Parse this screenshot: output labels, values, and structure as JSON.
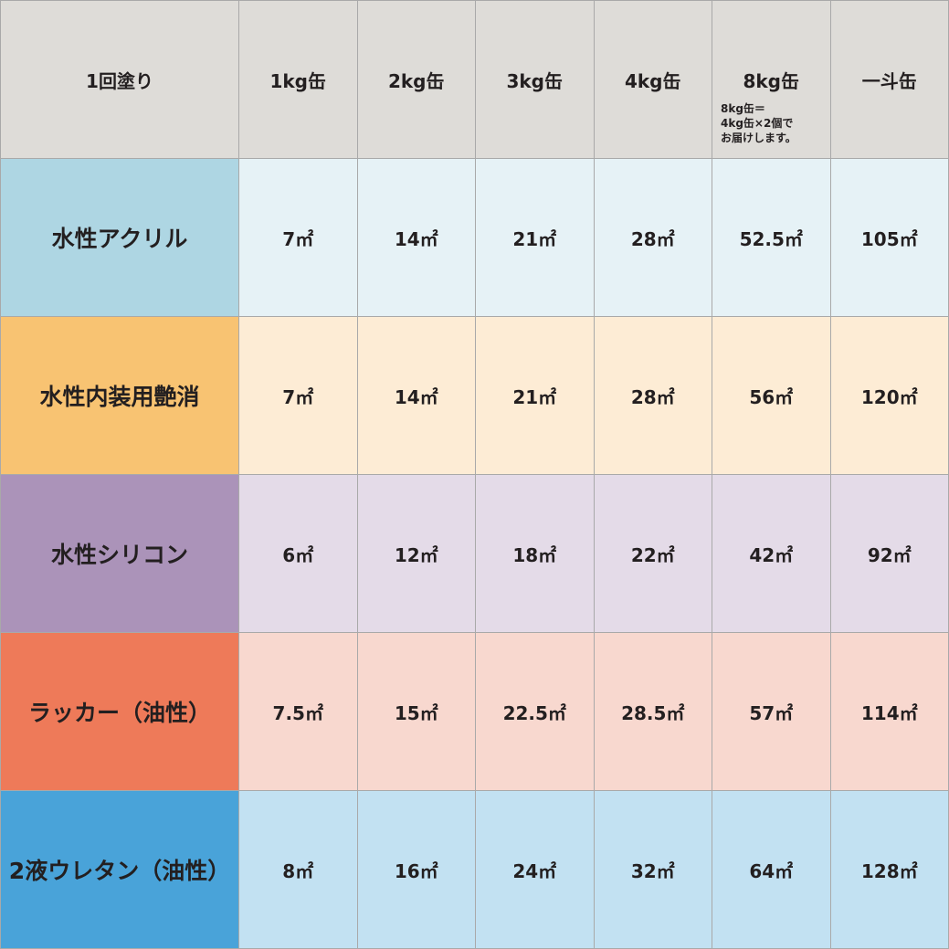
{
  "header": {
    "corner": "1回塗り",
    "columns": [
      "1kg缶",
      "2kg缶",
      "3kg缶",
      "4kg缶",
      "8kg缶",
      "一斗缶"
    ],
    "note_8kg": "8kg缶＝\n4kg缶×2個で\nお届けします。"
  },
  "rows": [
    {
      "label": "水性アクリル",
      "label_color": "#aed6e3",
      "cell_color": "#e6f2f6",
      "values": [
        "7㎡",
        "14㎡",
        "21㎡",
        "28㎡",
        "52.5㎡",
        "105㎡"
      ]
    },
    {
      "label": "水性内装用艶消",
      "label_color": "#f8c372",
      "cell_color": "#fdecd5",
      "values": [
        "7㎡",
        "14㎡",
        "21㎡",
        "28㎡",
        "56㎡",
        "120㎡"
      ]
    },
    {
      "label": "水性シリコン",
      "label_color": "#ab93b9",
      "cell_color": "#e4dbe8",
      "values": [
        "6㎡",
        "12㎡",
        "18㎡",
        "22㎡",
        "42㎡",
        "92㎡"
      ]
    },
    {
      "label": "ラッカー（油性）",
      "label_color": "#ee7a59",
      "cell_color": "#f8d8cf",
      "values": [
        "7.5㎡",
        "15㎡",
        "22.5㎡",
        "28.5㎡",
        "57㎡",
        "114㎡"
      ]
    },
    {
      "label": "2液ウレタン（油性）",
      "label_color": "#49a3d9",
      "cell_color": "#c2e1f2",
      "values": [
        "8㎡",
        "16㎡",
        "24㎡",
        "32㎡",
        "64㎡",
        "128㎡"
      ]
    }
  ]
}
